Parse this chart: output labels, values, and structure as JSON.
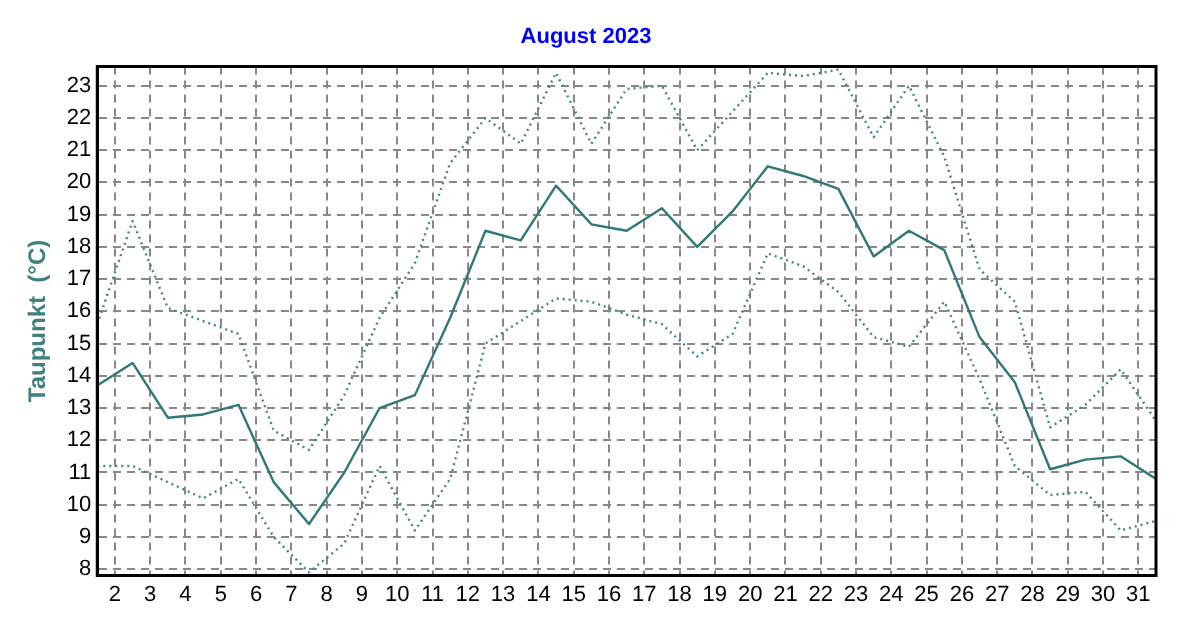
{
  "chart_data": {
    "type": "line",
    "title": "August 2023",
    "ylabel": "Taupunkt  (°C)",
    "x": [
      1.5,
      2.5,
      3.5,
      4.5,
      5.5,
      6.5,
      7.5,
      8.5,
      9.5,
      10.5,
      11.5,
      12.5,
      13.5,
      14.5,
      15.5,
      16.5,
      17.5,
      18.5,
      19.5,
      20.5,
      21.5,
      22.5,
      23.5,
      24.5,
      25.5,
      26.5,
      27.5,
      28.5,
      29.5,
      30.5,
      31.5
    ],
    "series": [
      {
        "color": "#408888",
        "line_style": "dotted",
        "values": [
          15.6,
          18.8,
          16.1,
          15.7,
          15.3,
          12.3,
          11.7,
          13.4,
          15.8,
          17.5,
          20.6,
          22.0,
          21.2,
          23.4,
          21.2,
          22.9,
          23.0,
          21.0,
          22.2,
          23.4,
          23.3,
          23.5,
          21.4,
          23.0,
          20.8,
          17.3,
          16.3,
          12.4,
          13.1,
          14.2,
          12.6
        ]
      },
      {
        "color": "#307878",
        "line_style": "solid",
        "values": [
          13.7,
          14.4,
          12.7,
          12.8,
          13.1,
          10.7,
          9.4,
          11.0,
          13.0,
          13.4,
          15.8,
          18.5,
          18.2,
          19.9,
          18.7,
          18.5,
          19.2,
          18.0,
          19.1,
          20.5,
          20.2,
          19.8,
          17.7,
          18.5,
          17.9,
          15.2,
          13.8,
          11.1,
          11.4,
          11.5,
          10.8
        ]
      },
      {
        "color": "#408888",
        "line_style": "dotted",
        "values": [
          11.2,
          11.2,
          10.7,
          10.2,
          10.8,
          9.0,
          7.9,
          8.8,
          11.2,
          9.2,
          10.8,
          15.0,
          15.7,
          16.4,
          16.3,
          15.9,
          15.6,
          14.6,
          15.3,
          17.8,
          17.4,
          16.6,
          15.2,
          14.9,
          16.3,
          13.9,
          11.2,
          10.3,
          10.4,
          9.2,
          9.5
        ]
      }
    ],
    "xlim": [
      1.5,
      31.5
    ],
    "xticks": [
      2,
      3,
      4,
      5,
      6,
      7,
      8,
      9,
      10,
      11,
      12,
      13,
      14,
      15,
      16,
      17,
      18,
      19,
      20,
      21,
      22,
      23,
      24,
      25,
      26,
      27,
      28,
      29,
      30,
      31
    ],
    "ylim": [
      7.8,
      23.6
    ],
    "yticks": [
      8,
      9,
      10,
      11,
      12,
      13,
      14,
      15,
      16,
      17,
      18,
      19,
      20,
      21,
      22,
      23
    ],
    "grid": true,
    "legend": false,
    "marker": "none"
  }
}
